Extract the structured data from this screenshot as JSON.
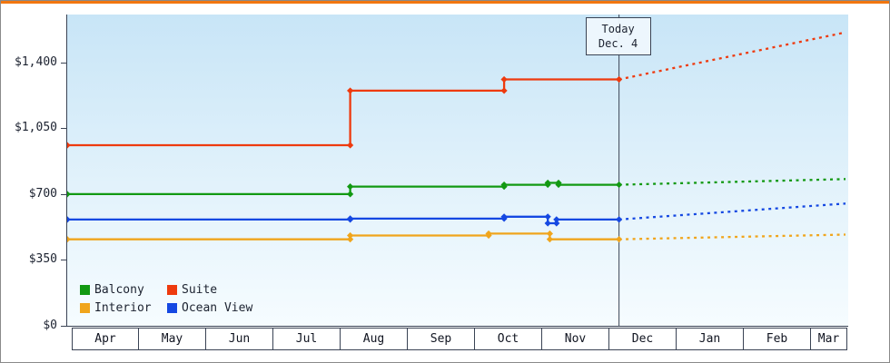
{
  "page": {
    "accent_bar_color": "#f2760f",
    "axis_color": "#3a4354"
  },
  "chart_data": {
    "type": "line",
    "title": "",
    "x_axis": {
      "months": [
        "Apr",
        "May",
        "Jun",
        "Jul",
        "Aug",
        "Sep",
        "Oct",
        "Nov",
        "Dec",
        "Jan",
        "Feb",
        "Mar"
      ]
    },
    "y_axis": {
      "max": 1655,
      "ticks": [
        {
          "value": 0,
          "label": "$0"
        },
        {
          "value": 350,
          "label": "$350"
        },
        {
          "value": 700,
          "label": "$700"
        },
        {
          "value": 1050,
          "label": "$1,050"
        },
        {
          "value": 1400,
          "label": "$1,400"
        }
      ]
    },
    "today": {
      "label_line1": "Today",
      "label_line2": "Dec. 4",
      "month_offset": 8.13
    },
    "series": [
      {
        "name": "Balcony",
        "color": "#129912",
        "points": [
          [
            -0.08,
            700
          ],
          [
            4.13,
            700
          ],
          [
            4.13,
            740
          ],
          [
            6.42,
            740
          ],
          [
            6.42,
            750
          ],
          [
            7.07,
            750
          ],
          [
            7.07,
            760
          ],
          [
            7.23,
            760
          ],
          [
            7.23,
            750
          ],
          [
            8.13,
            750
          ]
        ],
        "forecast": [
          [
            8.13,
            750
          ],
          [
            11.5,
            780
          ]
        ]
      },
      {
        "name": "Suite",
        "color": "#ee3a0e",
        "points": [
          [
            -0.08,
            960
          ],
          [
            4.13,
            960
          ],
          [
            4.13,
            1250
          ],
          [
            6.42,
            1250
          ],
          [
            6.42,
            1310
          ],
          [
            8.13,
            1310
          ]
        ],
        "forecast": [
          [
            8.13,
            1310
          ],
          [
            11.5,
            1560
          ]
        ]
      },
      {
        "name": "Interior",
        "color": "#f0a51c",
        "points": [
          [
            -0.08,
            460
          ],
          [
            4.13,
            460
          ],
          [
            4.13,
            480
          ],
          [
            6.19,
            480
          ],
          [
            6.19,
            490
          ],
          [
            7.1,
            490
          ],
          [
            7.1,
            460
          ],
          [
            8.13,
            460
          ]
        ],
        "forecast": [
          [
            8.13,
            460
          ],
          [
            11.5,
            485
          ]
        ]
      },
      {
        "name": "Ocean View",
        "color": "#1548e2",
        "points": [
          [
            -0.08,
            565
          ],
          [
            4.13,
            565
          ],
          [
            4.13,
            570
          ],
          [
            6.42,
            570
          ],
          [
            6.42,
            580
          ],
          [
            7.07,
            580
          ],
          [
            7.07,
            545
          ],
          [
            7.2,
            545
          ],
          [
            7.2,
            565
          ],
          [
            8.13,
            565
          ]
        ],
        "forecast": [
          [
            8.13,
            565
          ],
          [
            11.5,
            650
          ]
        ]
      }
    ],
    "legend": {
      "position": "bottom-left",
      "order": [
        "Balcony",
        "Suite",
        "Interior",
        "Ocean View"
      ]
    }
  }
}
